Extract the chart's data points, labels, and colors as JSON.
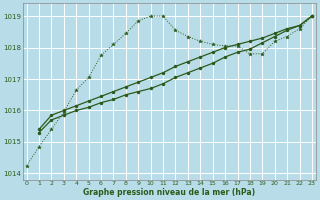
{
  "xlabel": "Graphe pression niveau de la mer (hPa)",
  "background_color": "#b8dde8",
  "grid_color": "#ffffff",
  "line_color": "#2d5a1b",
  "ylim": [
    1013.8,
    1019.4
  ],
  "xlim": [
    -0.3,
    23.3
  ],
  "yticks": [
    1014,
    1015,
    1016,
    1017,
    1018,
    1019
  ],
  "xticks": [
    0,
    1,
    2,
    3,
    4,
    5,
    6,
    7,
    8,
    9,
    10,
    11,
    12,
    13,
    14,
    15,
    16,
    17,
    18,
    19,
    20,
    21,
    22,
    23
  ],
  "line1_x": [
    0,
    1,
    2,
    3,
    4,
    5,
    6,
    7,
    8,
    9,
    10,
    11,
    12,
    13,
    14,
    15,
    16,
    17,
    18,
    19,
    20,
    21,
    22,
    23
  ],
  "line1_y": [
    1014.25,
    1014.85,
    1015.4,
    1015.95,
    1016.65,
    1017.05,
    1017.75,
    1018.1,
    1018.45,
    1018.85,
    1019.0,
    1019.0,
    1018.55,
    1018.35,
    1018.2,
    1018.1,
    1018.05,
    1018.05,
    1017.8,
    1017.8,
    1018.2,
    1018.35,
    1018.6,
    1019.0
  ],
  "line2_x": [
    1,
    2,
    3,
    4,
    5,
    6,
    7,
    8,
    9,
    10,
    11,
    12,
    13,
    14,
    15,
    16,
    17,
    18,
    19,
    20,
    21,
    22,
    23
  ],
  "line2_y": [
    1015.4,
    1015.85,
    1016.0,
    1016.15,
    1016.3,
    1016.45,
    1016.6,
    1016.75,
    1016.9,
    1017.05,
    1017.2,
    1017.4,
    1017.55,
    1017.7,
    1017.85,
    1018.0,
    1018.1,
    1018.2,
    1018.3,
    1018.45,
    1018.6,
    1018.7,
    1019.0
  ],
  "line3_x": [
    1,
    2,
    3,
    4,
    5,
    6,
    7,
    8,
    9,
    10,
    11,
    12,
    13,
    14,
    15,
    16,
    17,
    18,
    19,
    20,
    21,
    22,
    23
  ],
  "line3_y": [
    1015.3,
    1015.7,
    1015.85,
    1016.0,
    1016.1,
    1016.25,
    1016.35,
    1016.5,
    1016.6,
    1016.7,
    1016.85,
    1017.05,
    1017.2,
    1017.35,
    1017.5,
    1017.7,
    1017.85,
    1017.95,
    1018.15,
    1018.35,
    1018.55,
    1018.7,
    1019.0
  ]
}
